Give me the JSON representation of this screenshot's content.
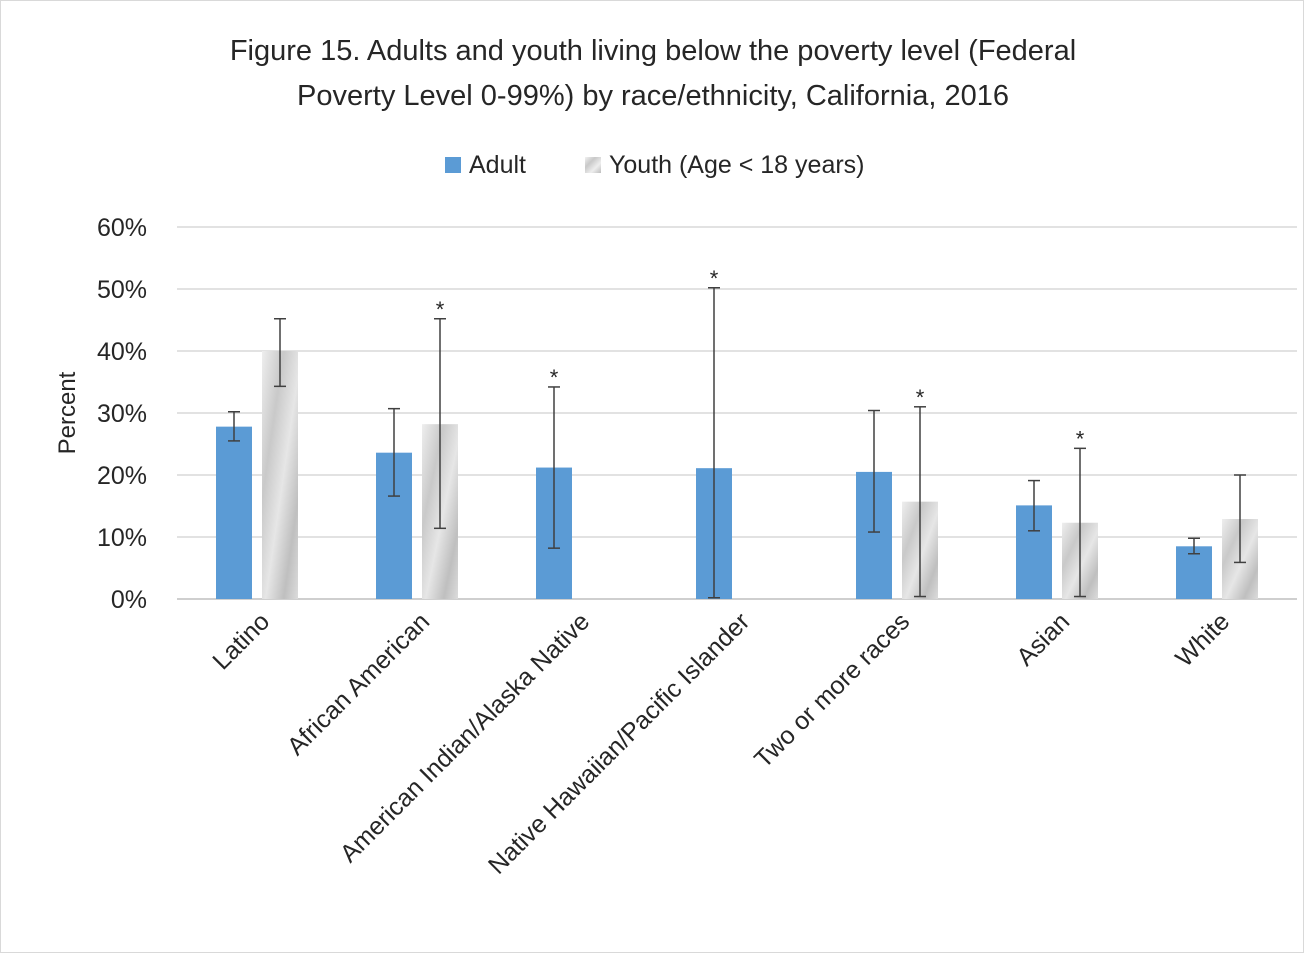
{
  "chart_data": {
    "type": "bar",
    "title": "Figure 15. Adults and youth living below the poverty level (Federal",
    "title_line2": "Poverty Level 0-99%) by race/ethnicity, California, 2016",
    "ylabel": "Percent",
    "xlabel": "",
    "ylim": [
      0,
      60
    ],
    "yticks": [
      "0%",
      "10%",
      "20%",
      "30%",
      "40%",
      "50%",
      "60%"
    ],
    "legend_position": "top",
    "grid": true,
    "categories": [
      "Latino",
      "African American",
      "American Indian/Alaska Native",
      "Native Hawaiian/Pacific Islander",
      "Two or more races",
      "Asian",
      "White"
    ],
    "series": [
      {
        "name": "Adult",
        "color": "#5b9bd5",
        "values": [
          27.8,
          23.6,
          21.2,
          21.1,
          20.5,
          15.1,
          8.5
        ],
        "error_low": [
          25.5,
          16.6,
          8.2,
          0.2,
          10.8,
          11.0,
          7.3
        ],
        "error_high": [
          30.2,
          30.7,
          34.2,
          50.2,
          30.4,
          19.1,
          9.8
        ],
        "flagged": [
          false,
          false,
          true,
          true,
          false,
          false,
          false
        ]
      },
      {
        "name": "Youth (Age < 18 years)",
        "color": "#cfcfcf",
        "values": [
          40.0,
          28.2,
          null,
          null,
          15.7,
          12.3,
          12.9
        ],
        "error_low": [
          34.3,
          11.4,
          null,
          null,
          0.4,
          0.4,
          5.9
        ],
        "error_high": [
          45.2,
          45.2,
          null,
          null,
          31.0,
          24.3,
          20.0
        ],
        "flagged": [
          false,
          true,
          false,
          false,
          true,
          true,
          false
        ]
      }
    ],
    "flag_symbol": "*"
  }
}
